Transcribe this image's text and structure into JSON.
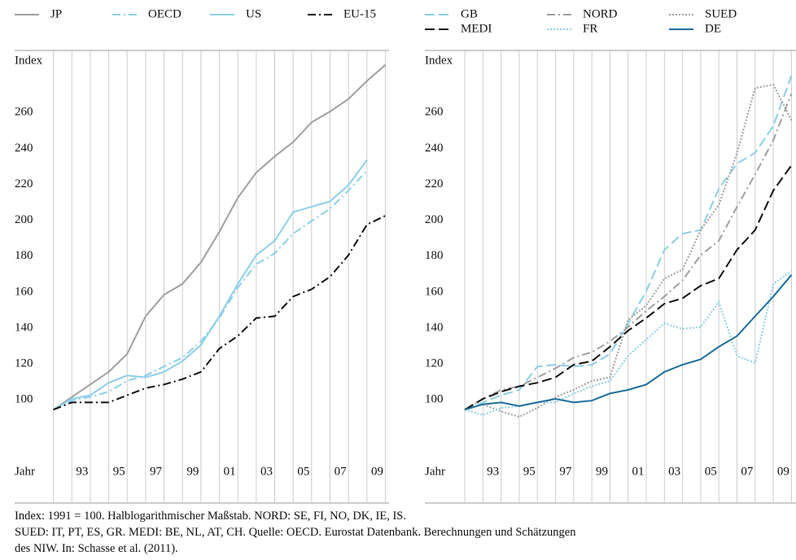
{
  "chart_data": [
    {
      "type": "line",
      "x": [
        1991,
        1992,
        1993,
        1994,
        1995,
        1996,
        1997,
        1998,
        1999,
        2000,
        2001,
        2002,
        2003,
        2004,
        2005,
        2006,
        2007,
        2008,
        2009
      ],
      "series": [
        {
          "name": "JP",
          "color": "#a0a0a0",
          "dash": "solid",
          "values": [
            100,
            107,
            114,
            121,
            131,
            152,
            164,
            170,
            182,
            199,
            218,
            232,
            241,
            249,
            260,
            266,
            273,
            283,
            292
          ]
        },
        {
          "name": "OECD",
          "color": "#8ccfea",
          "dash": "dashdot",
          "values": [
            100,
            105,
            107,
            110,
            116,
            119,
            124,
            129,
            138,
            151,
            168,
            181,
            187,
            198,
            205,
            212,
            222,
            233,
            null
          ]
        },
        {
          "name": "US",
          "color": "#8ccfea",
          "dash": "solid",
          "values": [
            100,
            106,
            108,
            115,
            119,
            118,
            121,
            127,
            136,
            152,
            170,
            186,
            194,
            210,
            213,
            216,
            225,
            239,
            null
          ]
        },
        {
          "name": "EU-15",
          "color": "#111111",
          "dash": "dashdot",
          "values": [
            100,
            104,
            104,
            104,
            108,
            112,
            114,
            117,
            121,
            134,
            141,
            151,
            152,
            163,
            167,
            174,
            186,
            203,
            208
          ]
        }
      ],
      "ylabel": "Index",
      "xlabel": "Jahr",
      "xlim": [
        1988.9,
        2009.2
      ],
      "ylim": [
        48,
        300
      ],
      "xticks": [
        {
          "value": 1993,
          "label": "93"
        },
        {
          "value": 1995,
          "label": "95"
        },
        {
          "value": 1997,
          "label": "97"
        },
        {
          "value": 1999,
          "label": "99"
        },
        {
          "value": 2001,
          "label": "01"
        },
        {
          "value": 2003,
          "label": "03"
        },
        {
          "value": 2005,
          "label": "05"
        },
        {
          "value": 2007,
          "label": "07"
        },
        {
          "value": 2009,
          "label": "09"
        }
      ],
      "minor_xticks": [
        1991,
        1992,
        1994,
        1996,
        1998,
        2000,
        2002,
        2004,
        2006,
        2008
      ],
      "yticks": [
        100,
        120,
        140,
        160,
        180,
        200,
        220,
        240,
        260
      ]
    },
    {
      "type": "line",
      "x": [
        1991,
        1992,
        1993,
        1994,
        1995,
        1996,
        1997,
        1998,
        1999,
        2000,
        2001,
        2002,
        2003,
        2004,
        2005,
        2006,
        2007,
        2008,
        2009
      ],
      "series": [
        {
          "name": "GB",
          "color": "#8ccfea",
          "dash": "dashed",
          "values": [
            100,
            104,
            108,
            111,
            124,
            125,
            124,
            125,
            131,
            148,
            166,
            189,
            198,
            200,
            223,
            237,
            243,
            258,
            286
          ]
        },
        {
          "name": "NORD",
          "color": "#a0a0a0",
          "dash": "dashdot",
          "values": [
            100,
            106,
            111,
            113,
            118,
            123,
            129,
            132,
            138,
            146,
            155,
            163,
            172,
            186,
            194,
            213,
            231,
            250,
            276
          ]
        },
        {
          "name": "SUED",
          "color": "#a0a0a0",
          "dash": "dotted",
          "values": [
            100,
            103,
            99,
            96,
            101,
            107,
            111,
            116,
            118,
            150,
            158,
            173,
            178,
            200,
            214,
            243,
            279,
            281,
            261
          ]
        },
        {
          "name": "MEDI",
          "color": "#111111",
          "dash": "dashed",
          "values": [
            100,
            106,
            110,
            113,
            115,
            118,
            125,
            127,
            135,
            144,
            151,
            159,
            162,
            169,
            173,
            189,
            200,
            222,
            236
          ]
        },
        {
          "name": "FR",
          "color": "#8ccfea",
          "dash": "dotted",
          "values": [
            100,
            97,
            101,
            102,
            104,
            104,
            109,
            113,
            116,
            130,
            139,
            148,
            145,
            146,
            160,
            130,
            126,
            170,
            177
          ]
        },
        {
          "name": "DE",
          "color": "#1b6f9e",
          "dash": "solid",
          "values": [
            100,
            103,
            104,
            102,
            104,
            106,
            104,
            105,
            109,
            111,
            114,
            121,
            125,
            128,
            135,
            141,
            152,
            163,
            175
          ]
        }
      ],
      "ylabel": "Index",
      "xlabel": "Jahr",
      "xlim": [
        1988.8,
        2009.25
      ],
      "ylim": [
        48,
        300
      ],
      "xticks": [
        {
          "value": 1993,
          "label": "93"
        },
        {
          "value": 1995,
          "label": "95"
        },
        {
          "value": 1997,
          "label": "97"
        },
        {
          "value": 1999,
          "label": "99"
        },
        {
          "value": 2001,
          "label": "01"
        },
        {
          "value": 2003,
          "label": "03"
        },
        {
          "value": 2005,
          "label": "05"
        },
        {
          "value": 2007,
          "label": "07"
        },
        {
          "value": 2009,
          "label": "09"
        }
      ],
      "minor_xticks": [
        1991,
        1992,
        1994,
        1996,
        1998,
        2000,
        2002,
        2004,
        2006,
        2008
      ],
      "yticks": [
        100,
        120,
        140,
        160,
        180,
        200,
        220,
        240,
        260
      ]
    }
  ],
  "footnote": [
    "Index: 1991 = 100. Halblogarithmischer Maßstab. NORD: SE, FI, NO, DK, IE, IS.",
    "SUED: IT, PT, ES, GR.  MEDI: BE, NL, AT, CH. Quelle: OECD. Eurostat Datenbank. Berechnungen und Schätzungen",
    "des NIW.  In: Schasse et al. (2011)."
  ]
}
